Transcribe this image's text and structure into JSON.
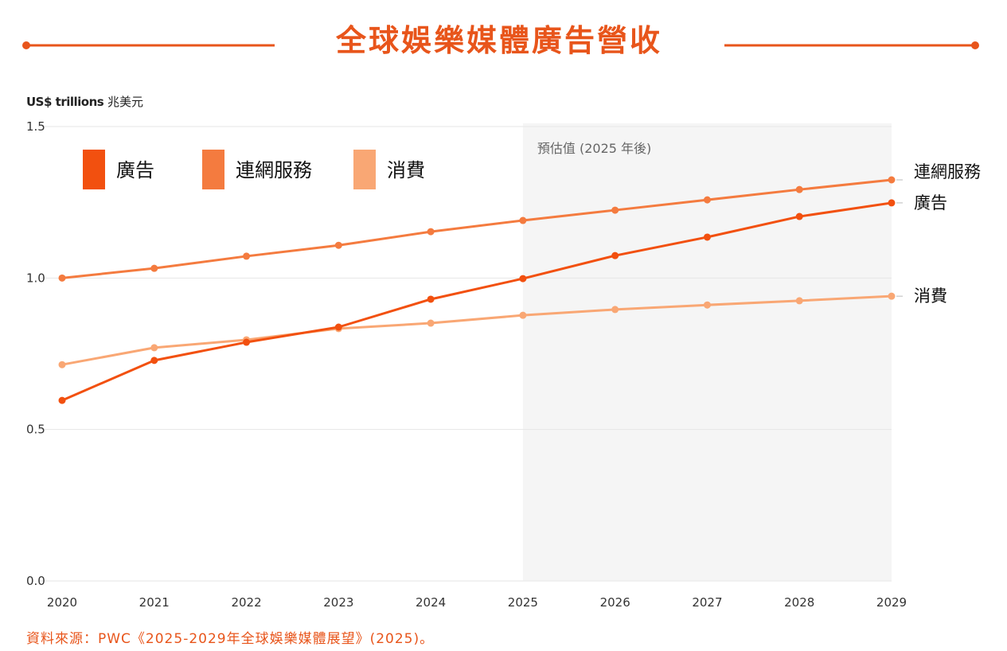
{
  "chart_data": {
    "type": "line",
    "title": "全球娛樂媒體廣告營收",
    "ylabel_en": "US$ trillions",
    "ylabel_zh": "兆美元",
    "xlabel": "",
    "ylim": [
      0,
      1.5
    ],
    "yticks": [
      "0.0",
      "0.5",
      "1.0",
      "1.5"
    ],
    "ytick_values": [
      0,
      0.5,
      1.0,
      1.5
    ],
    "x": [
      "2020",
      "2021",
      "2022",
      "2023",
      "2024",
      "2025",
      "2026",
      "2027",
      "2028",
      "2029"
    ],
    "grid": true,
    "legend_position": "top-left",
    "forecast_label": "預估值 (2025 年後)",
    "forecast_start": "2025",
    "series": [
      {
        "name": "廣告",
        "color": "#f2500f",
        "values": [
          0.596,
          0.728,
          0.788,
          0.838,
          0.93,
          0.998,
          1.074,
          1.135,
          1.203,
          1.248
        ]
      },
      {
        "name": "連網服務",
        "color": "#f47b3f",
        "values": [
          1.0,
          1.032,
          1.072,
          1.108,
          1.153,
          1.19,
          1.224,
          1.258,
          1.292,
          1.324
        ]
      },
      {
        "name": "消費",
        "color": "#f9a774",
        "values": [
          0.714,
          0.77,
          0.796,
          0.833,
          0.851,
          0.877,
          0.896,
          0.911,
          0.925,
          0.94
        ]
      }
    ],
    "source": "資料來源：PWC《2025-2029年全球娛樂媒體展望》(2025)。"
  },
  "colors": {
    "accent": "#e8551b",
    "forecast_bg": "#f5f5f5",
    "grid": "#e6e6e6"
  }
}
